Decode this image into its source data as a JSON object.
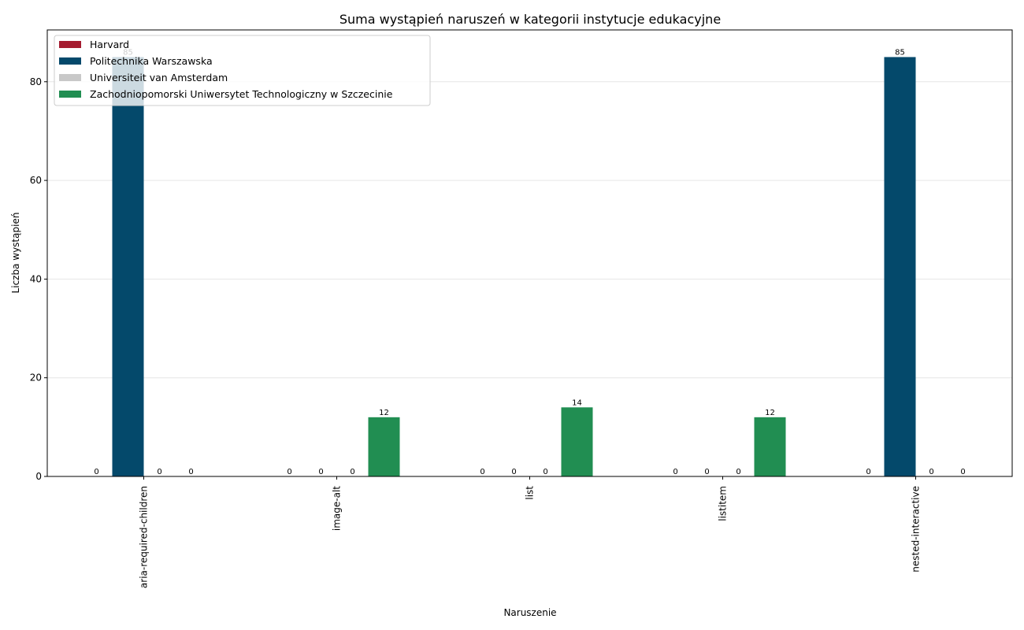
{
  "chart_data": {
    "type": "bar",
    "title": "Suma wystąpień naruszeń w kategorii instytucje edukacyjne",
    "xlabel": "Naruszenie",
    "ylabel": "Liczba wystąpień",
    "categories": [
      "aria-required-children",
      "image-alt",
      "list",
      "listitem",
      "nested-interactive"
    ],
    "series": [
      {
        "name": "Harvard",
        "color": "#a51c30",
        "values": [
          0,
          0,
          0,
          0,
          0
        ]
      },
      {
        "name": "Politechnika Warszawska",
        "color": "#04496b",
        "values": [
          85,
          0,
          0,
          0,
          85
        ]
      },
      {
        "name": "Universiteit van Amsterdam",
        "color": "#c8c8c8",
        "values": [
          0,
          0,
          0,
          0,
          0
        ]
      },
      {
        "name": "Zachodniopomorski Uniwersytet Technologiczny w Szczecinie",
        "color": "#218e52",
        "values": [
          0,
          12,
          14,
          12,
          0
        ]
      }
    ],
    "ylim": [
      0,
      90.5
    ],
    "yticks": [
      0,
      20,
      40,
      60,
      80
    ],
    "grid": "y",
    "legend_position": "top-left"
  }
}
